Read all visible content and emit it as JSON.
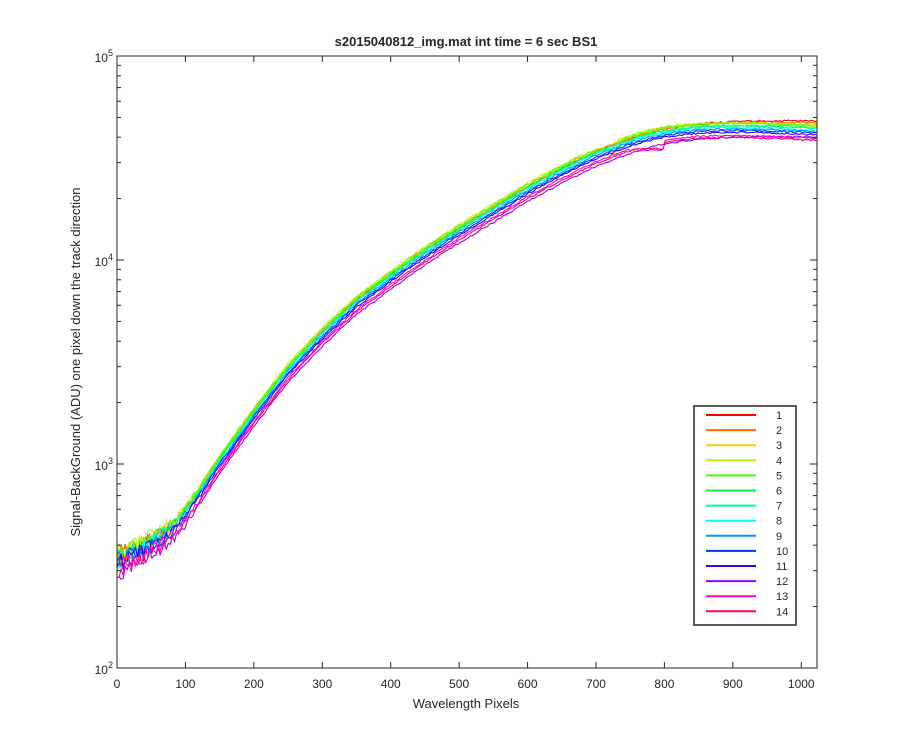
{
  "chart_data": {
    "type": "line",
    "title": "s2015040812_img.mat int time = 6 sec   BS1",
    "xlabel": "Wavelength Pixels",
    "ylabel": "Signal-BackGround (ADU) one pixel down the track direction",
    "xlim": [
      0,
      1023
    ],
    "ylim": [
      100,
      100000
    ],
    "yscale": "log",
    "xticks": [
      0,
      100,
      200,
      300,
      400,
      500,
      600,
      700,
      800,
      900,
      1000
    ],
    "yticks": [
      {
        "value": 100,
        "base": "10",
        "exp": "2"
      },
      {
        "value": 1000,
        "base": "10",
        "exp": "3"
      },
      {
        "value": 10000,
        "base": "10",
        "exp": "4"
      },
      {
        "value": 100000,
        "base": "10",
        "exp": "5"
      }
    ],
    "grid": false,
    "legend_position": "bottom-right",
    "base_curve": {
      "x": [
        0,
        20,
        40,
        60,
        80,
        100,
        120,
        150,
        200,
        250,
        300,
        350,
        400,
        450,
        500,
        550,
        600,
        650,
        700,
        750,
        800,
        850,
        900,
        950,
        1023
      ],
      "y": [
        330,
        350,
        380,
        420,
        470,
        560,
        700,
        1000,
        1700,
        2800,
        4200,
        6000,
        8000,
        10500,
        13500,
        17000,
        21500,
        26500,
        32000,
        37000,
        40500,
        43000,
        44500,
        45500,
        46000
      ]
    },
    "series": [
      {
        "name": "1",
        "color": "#ff0000",
        "scale": 1.06,
        "end_value": 48000,
        "plateau": null
      },
      {
        "name": "2",
        "color": "#ff6600",
        "scale": 1.07,
        "end_value": 47000,
        "plateau": null
      },
      {
        "name": "3",
        "color": "#ffcc00",
        "scale": 1.08,
        "end_value": 46000,
        "plateau": null
      },
      {
        "name": "4",
        "color": "#b3ff00",
        "scale": 1.11,
        "end_value": 45000,
        "plateau": [
          678,
          730
        ]
      },
      {
        "name": "5",
        "color": "#4dff00",
        "scale": 1.09,
        "end_value": 45500,
        "plateau": [
          700,
          735
        ]
      },
      {
        "name": "6",
        "color": "#00ff33",
        "scale": 1.06,
        "end_value": 44500,
        "plateau": null
      },
      {
        "name": "7",
        "color": "#00ff99",
        "scale": 1.05,
        "end_value": 44000,
        "plateau": null
      },
      {
        "name": "8",
        "color": "#00ffff",
        "scale": 1.04,
        "end_value": 43000,
        "plateau": null
      },
      {
        "name": "9",
        "color": "#0099ff",
        "scale": 1.02,
        "end_value": 42500,
        "plateau": null
      },
      {
        "name": "10",
        "color": "#0033ff",
        "scale": 1.0,
        "end_value": 42000,
        "plateau": null
      },
      {
        "name": "11",
        "color": "#3300ff",
        "scale": 0.98,
        "end_value": 41000,
        "plateau": null
      },
      {
        "name": "12",
        "color": "#9900ff",
        "scale": 0.9,
        "end_value": 40000,
        "plateau": null
      },
      {
        "name": "13",
        "color": "#ff00cc",
        "scale": 0.95,
        "end_value": 39500,
        "plateau": [
          745,
          800
        ]
      },
      {
        "name": "14",
        "color": "#ff0066",
        "scale": 0.93,
        "end_value": 38500,
        "plateau": [
          760,
          800
        ]
      }
    ]
  }
}
